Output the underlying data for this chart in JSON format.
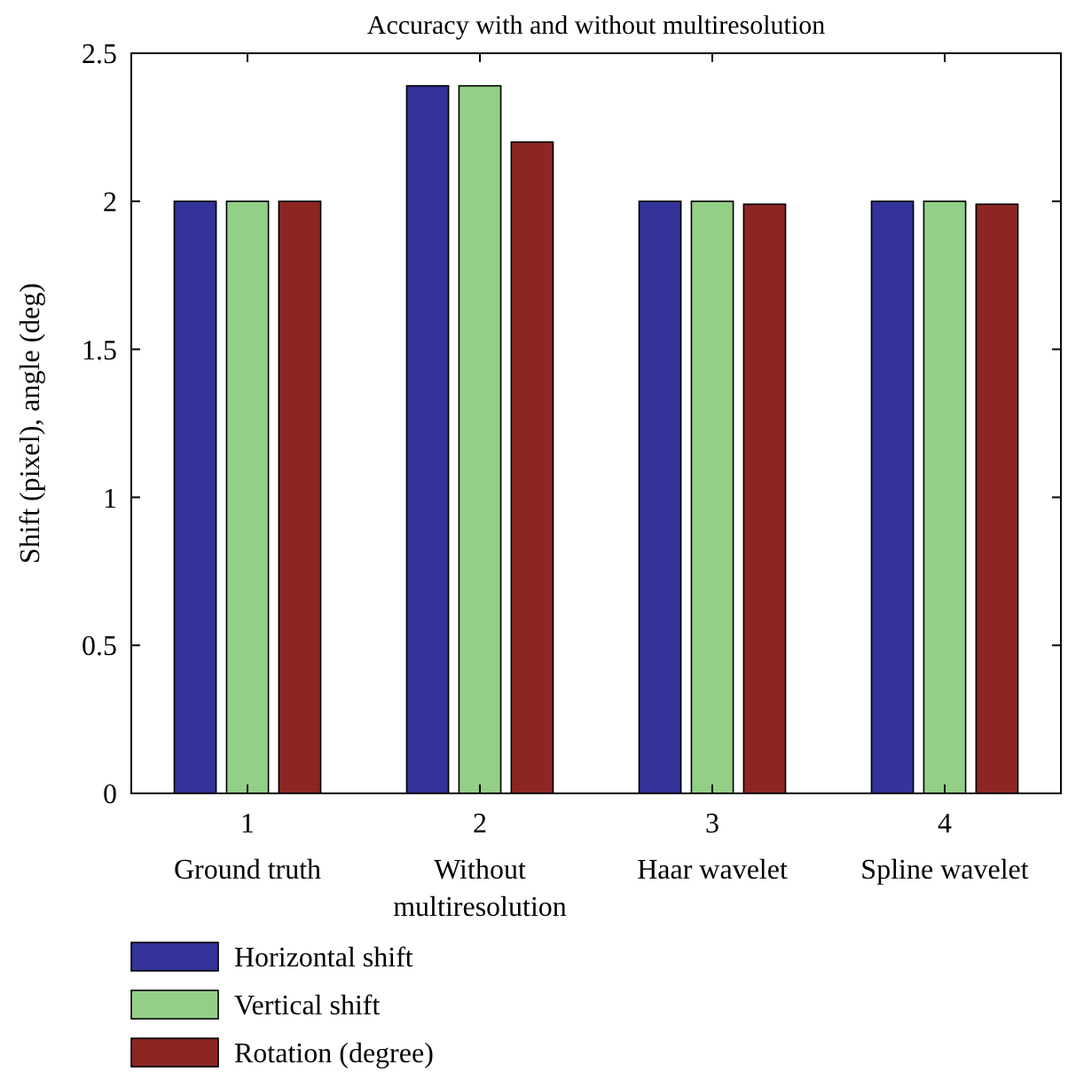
{
  "chart_data": {
    "type": "bar",
    "title": "Accuracy with and without multiresolution",
    "ylabel": "Shift (pixel), angle (deg)",
    "categories": [
      "1\nGround truth",
      "2\nWithout\nmultiresolution",
      "3\nHaar wavelet",
      "4\nSpline wavelet"
    ],
    "series": [
      {
        "name": "Horizontal shift",
        "color": "#333399",
        "values": [
          2,
          2.39,
          2,
          2
        ]
      },
      {
        "name": "Vertical shift",
        "color": "#93cf87",
        "values": [
          2,
          2.39,
          2,
          2
        ]
      },
      {
        "name": "Rotation (degree)",
        "color": "#8c2623",
        "values": [
          2,
          2.2,
          1.99,
          1.99
        ]
      }
    ],
    "ylim": [
      0,
      2.5
    ],
    "yticks": [
      0,
      0.5,
      1,
      1.5,
      2,
      2.5
    ],
    "grid": false,
    "legend": "bottom left"
  }
}
